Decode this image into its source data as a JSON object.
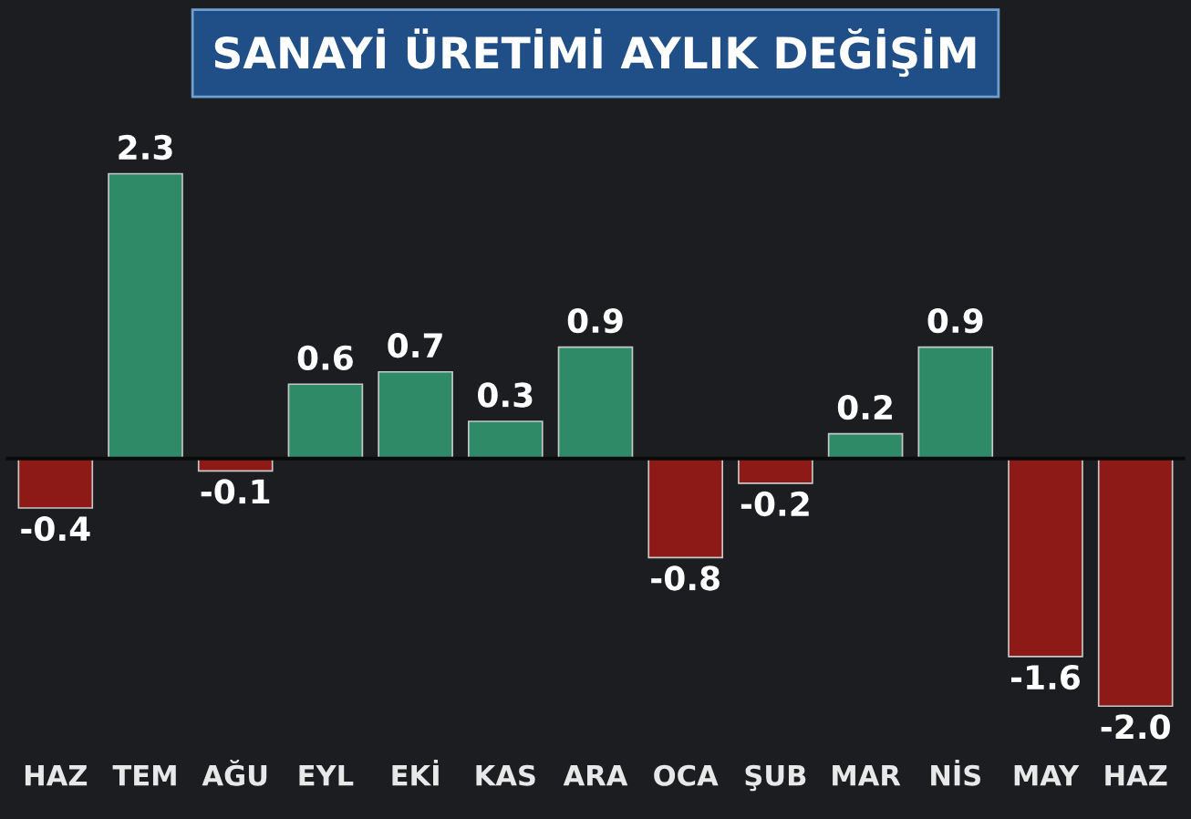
{
  "chart_data": {
    "type": "bar",
    "title": "SANAYİ ÜRETİMİ AYLIK DEĞİŞİM",
    "categories": [
      "HAZ",
      "TEM",
      "AĞU",
      "EYL",
      "EKİ",
      "KAS",
      "ARA",
      "OCA",
      "ŞUB",
      "MAR",
      "NİS",
      "MAY",
      "HAZ"
    ],
    "values": [
      -0.4,
      2.3,
      -0.1,
      0.6,
      0.7,
      0.3,
      0.9,
      -0.8,
      -0.2,
      0.2,
      0.9,
      -1.6,
      -2.0
    ],
    "colors": [
      "#8e1a17",
      "#2f8a68",
      "#8e1a17",
      "#2f8a68",
      "#2f8a68",
      "#2f8a68",
      "#2f8a68",
      "#8e1a17",
      "#8e1a17",
      "#2f8a68",
      "#2f8a68",
      "#8e1a17",
      "#8e1a17"
    ],
    "value_labels": [
      "-0.4",
      "2.3",
      "-0.1",
      "0.6",
      "0.7",
      "0.3",
      "0.9",
      "-0.8",
      "-0.2",
      "0.2",
      "0.9",
      "-1.6",
      "-2.0"
    ],
    "grid": false,
    "legend": false
  }
}
